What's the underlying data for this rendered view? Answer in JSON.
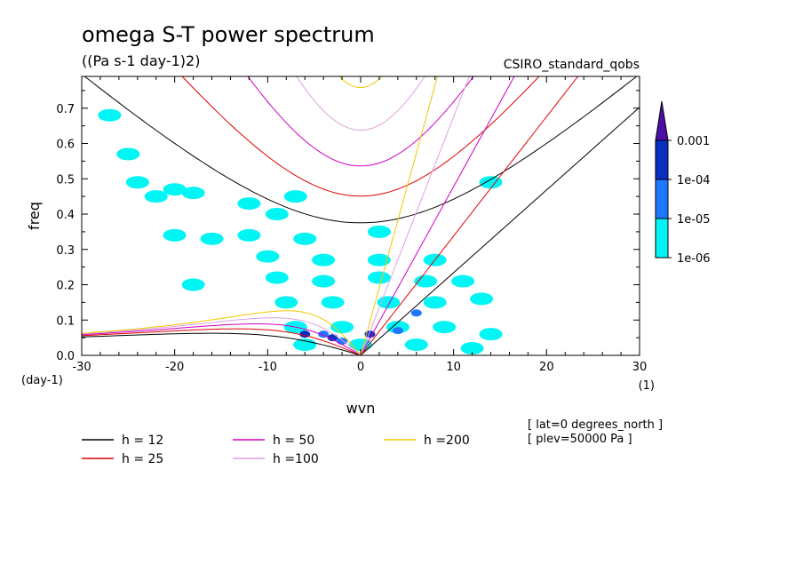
{
  "chart_data": {
    "type": "line",
    "title": "omega S-T power spectrum",
    "subtitle": "((Pa s-1 day-1)2)",
    "dataset_label": "CSIRO_standard_qobs",
    "xlabel": "wvn",
    "ylabel": "freq",
    "x_unit_label": "(1)",
    "y_unit_label": "(day-1)",
    "xlim": [
      -30,
      30
    ],
    "ylim": [
      0.0,
      0.79
    ],
    "x_ticks": [
      -30,
      -20,
      -10,
      0,
      10,
      20,
      30
    ],
    "x_tick_labels": [
      "-30",
      "-20",
      "-10",
      "0",
      "10",
      "20",
      "30"
    ],
    "y_ticks": [
      0.0,
      0.1,
      0.2,
      0.3,
      0.4,
      0.5,
      0.6,
      0.7
    ],
    "y_tick_labels": [
      "0.0",
      "0.1",
      "0.2",
      "0.3",
      "0.4",
      "0.5",
      "0.6",
      "0.7"
    ],
    "colorbar": {
      "levels": [
        "0.001",
        "1e-04",
        "1e-05",
        "1e-06"
      ],
      "colors": [
        "#4b0fa8",
        "#0a2fc0",
        "#1e78ff",
        "#00f5f5"
      ]
    },
    "series": [
      {
        "name": "h = 12",
        "color": "#000000",
        "equivalent_depth": 12
      },
      {
        "name": "h = 25",
        "color": "#e00000",
        "equivalent_depth": 25
      },
      {
        "name": "h = 50",
        "color": "#d000c0",
        "equivalent_depth": 50
      },
      {
        "name": "h =100",
        "color": "#dda0e0",
        "equivalent_depth": 100
      },
      {
        "name": "h =200",
        "color": "#f0c800",
        "equivalent_depth": 200
      }
    ],
    "annotations": [
      "[ lat=0 degrees_north ]",
      "[ plev=50000 Pa ]"
    ],
    "shaded_regions": [
      {
        "wvn": -27,
        "freq": 0.68,
        "level": "1e-06"
      },
      {
        "wvn": -25,
        "freq": 0.57,
        "level": "1e-06"
      },
      {
        "wvn": -24,
        "freq": 0.49,
        "level": "1e-06"
      },
      {
        "wvn": -22,
        "freq": 0.45,
        "level": "1e-06"
      },
      {
        "wvn": -20,
        "freq": 0.47,
        "level": "1e-06"
      },
      {
        "wvn": -18,
        "freq": 0.46,
        "level": "1e-06"
      },
      {
        "wvn": -12,
        "freq": 0.43,
        "level": "1e-06"
      },
      {
        "wvn": -9,
        "freq": 0.4,
        "level": "1e-06"
      },
      {
        "wvn": -7,
        "freq": 0.45,
        "level": "1e-06"
      },
      {
        "wvn": -20,
        "freq": 0.34,
        "level": "1e-06"
      },
      {
        "wvn": -16,
        "freq": 0.33,
        "level": "1e-06"
      },
      {
        "wvn": -12,
        "freq": 0.34,
        "level": "1e-06"
      },
      {
        "wvn": -6,
        "freq": 0.33,
        "level": "1e-06"
      },
      {
        "wvn": 2,
        "freq": 0.35,
        "level": "1e-06"
      },
      {
        "wvn": 14,
        "freq": 0.49,
        "level": "1e-06"
      },
      {
        "wvn": -10,
        "freq": 0.28,
        "level": "1e-06"
      },
      {
        "wvn": -4,
        "freq": 0.27,
        "level": "1e-06"
      },
      {
        "wvn": 2,
        "freq": 0.27,
        "level": "1e-06"
      },
      {
        "wvn": 8,
        "freq": 0.27,
        "level": "1e-06"
      },
      {
        "wvn": -9,
        "freq": 0.22,
        "level": "1e-06"
      },
      {
        "wvn": -4,
        "freq": 0.21,
        "level": "1e-06"
      },
      {
        "wvn": 2,
        "freq": 0.22,
        "level": "1e-06"
      },
      {
        "wvn": 7,
        "freq": 0.21,
        "level": "1e-06"
      },
      {
        "wvn": 11,
        "freq": 0.21,
        "level": "1e-06"
      },
      {
        "wvn": -18,
        "freq": 0.2,
        "level": "1e-06"
      },
      {
        "wvn": -8,
        "freq": 0.15,
        "level": "1e-06"
      },
      {
        "wvn": -3,
        "freq": 0.15,
        "level": "1e-06"
      },
      {
        "wvn": 3,
        "freq": 0.15,
        "level": "1e-06"
      },
      {
        "wvn": 8,
        "freq": 0.15,
        "level": "1e-06"
      },
      {
        "wvn": 13,
        "freq": 0.16,
        "level": "1e-06"
      },
      {
        "wvn": -7,
        "freq": 0.08,
        "level": "1e-06"
      },
      {
        "wvn": -2,
        "freq": 0.08,
        "level": "1e-06"
      },
      {
        "wvn": 4,
        "freq": 0.08,
        "level": "1e-06"
      },
      {
        "wvn": 9,
        "freq": 0.08,
        "level": "1e-06"
      },
      {
        "wvn": 14,
        "freq": 0.06,
        "level": "1e-06"
      },
      {
        "wvn": -6,
        "freq": 0.03,
        "level": "1e-06"
      },
      {
        "wvn": 0,
        "freq": 0.03,
        "level": "1e-06"
      },
      {
        "wvn": 6,
        "freq": 0.03,
        "level": "1e-06"
      },
      {
        "wvn": 12,
        "freq": 0.02,
        "level": "1e-06"
      },
      {
        "wvn": -4,
        "freq": 0.06,
        "level": "1e-05"
      },
      {
        "wvn": -2,
        "freq": 0.04,
        "level": "1e-05"
      },
      {
        "wvn": 4,
        "freq": 0.07,
        "level": "1e-05"
      },
      {
        "wvn": 6,
        "freq": 0.12,
        "level": "1e-05"
      },
      {
        "wvn": -6,
        "freq": 0.06,
        "level": "1e-04"
      },
      {
        "wvn": -3,
        "freq": 0.05,
        "level": "1e-04"
      },
      {
        "wvn": 1,
        "freq": 0.06,
        "level": "1e-04"
      }
    ]
  }
}
